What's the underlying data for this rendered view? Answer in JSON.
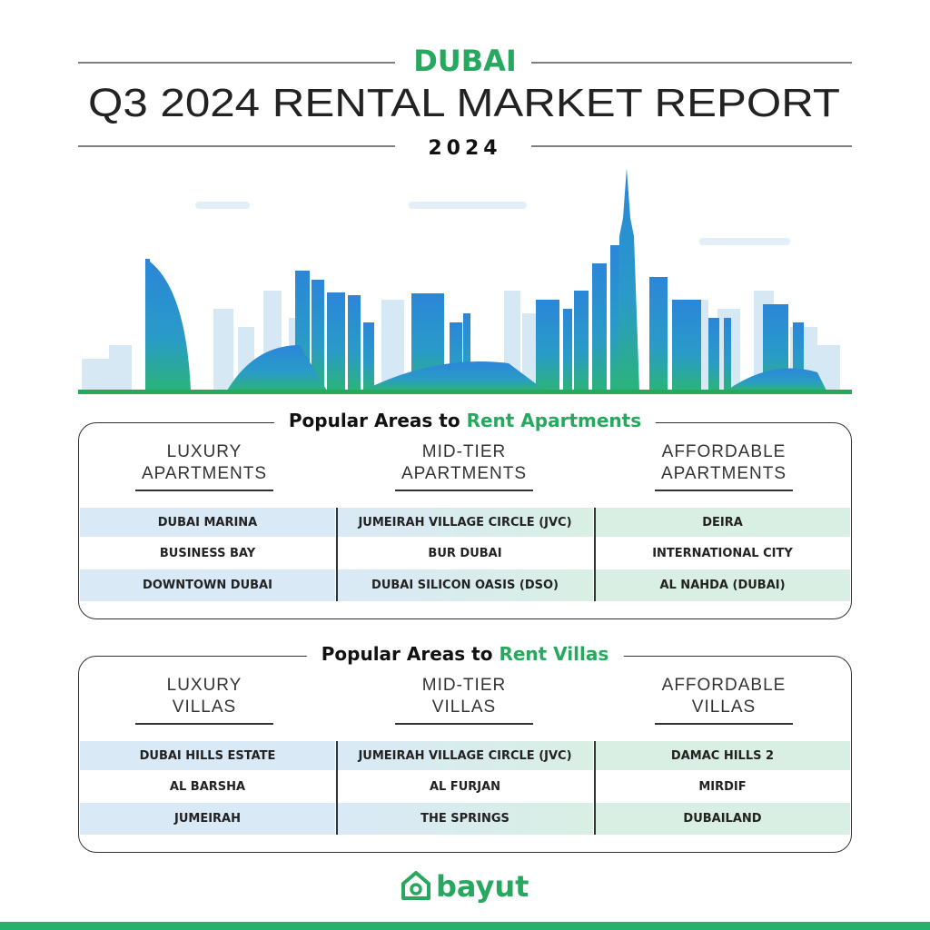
{
  "header": {
    "city": "DUBAI",
    "title": "Q3 2024 RENTAL MARKET REPORT",
    "year": "2024"
  },
  "sections": [
    {
      "heading": "Popular Areas to",
      "heading_highlight": "Rent Apartments",
      "columns": [
        {
          "title": [
            "LUXURY",
            "APARTMENTS"
          ],
          "areas": [
            "DUBAI MARINA",
            "BUSINESS BAY",
            "DOWNTOWN DUBAI"
          ]
        },
        {
          "title": [
            "MID-TIER",
            "APARTMENTS"
          ],
          "areas": [
            "JUMEIRAH VILLAGE CIRCLE (JVC)",
            "BUR DUBAI",
            "DUBAI SILICON OASIS (DSO)"
          ]
        },
        {
          "title": [
            "AFFORDABLE",
            "APARTMENTS"
          ],
          "areas": [
            "DEIRA",
            "INTERNATIONAL CITY",
            "AL NAHDA (DUBAI)"
          ]
        }
      ]
    },
    {
      "heading": "Popular Areas to",
      "heading_highlight": "Rent Villas",
      "columns": [
        {
          "title": [
            "LUXURY",
            "VILLAS"
          ],
          "areas": [
            "DUBAI HILLS ESTATE",
            "AL BARSHA",
            "JUMEIRAH"
          ]
        },
        {
          "title": [
            "MID-TIER",
            "VILLAS"
          ],
          "areas": [
            "JUMEIRAH VILLAGE CIRCLE (JVC)",
            "AL FURJAN",
            "THE SPRINGS"
          ]
        },
        {
          "title": [
            "AFFORDABLE",
            "VILLAS"
          ],
          "areas": [
            "DAMAC HILLS 2",
            "MIRDIF",
            "DUBAILAND"
          ]
        }
      ]
    }
  ],
  "footer": {
    "brand": "bayut"
  }
}
